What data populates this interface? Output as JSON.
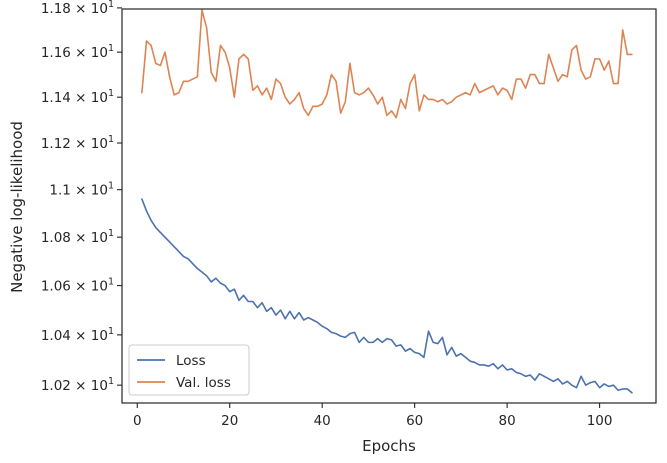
{
  "chart_data": {
    "type": "line",
    "title": "",
    "xlabel": "Epochs",
    "ylabel": "Negative log-likelihood",
    "xlim": [
      -3.3,
      112.2
    ],
    "ylim": [
      10.13,
      11.795
    ],
    "y_scale": "log",
    "grid": false,
    "legend_position": "lower-left",
    "x_ticks": [
      0,
      20,
      40,
      60,
      80,
      100
    ],
    "x_tick_labels": [
      "0",
      "20",
      "40",
      "60",
      "80",
      "100"
    ],
    "y_ticks": [
      10.2,
      10.4,
      10.6,
      10.8,
      11.0,
      11.2,
      11.4,
      11.6,
      11.8
    ],
    "y_tick_labels": [
      {
        "base": "1.02",
        "mult": "×",
        "pow": "10",
        "exp": "1"
      },
      {
        "base": "1.04",
        "mult": "×",
        "pow": "10",
        "exp": "1"
      },
      {
        "base": "1.06",
        "mult": "×",
        "pow": "10",
        "exp": "1"
      },
      {
        "base": "1.08",
        "mult": "×",
        "pow": "10",
        "exp": "1"
      },
      {
        "base": "1.1",
        "mult": "×",
        "pow": "10",
        "exp": "1"
      },
      {
        "base": "1.12",
        "mult": "×",
        "pow": "10",
        "exp": "1"
      },
      {
        "base": "1.14",
        "mult": "×",
        "pow": "10",
        "exp": "1"
      },
      {
        "base": "1.16",
        "mult": "×",
        "pow": "10",
        "exp": "1"
      },
      {
        "base": "1.18",
        "mult": "×",
        "pow": "10",
        "exp": "1"
      }
    ],
    "series": [
      {
        "name": "Loss",
        "color": "#4c72b0",
        "x": [
          1,
          2,
          3,
          4,
          5,
          6,
          7,
          8,
          9,
          10,
          11,
          12,
          13,
          14,
          15,
          16,
          17,
          18,
          19,
          20,
          21,
          22,
          23,
          24,
          25,
          26,
          27,
          28,
          29,
          30,
          31,
          32,
          33,
          34,
          35,
          36,
          37,
          38,
          39,
          40,
          41,
          42,
          43,
          44,
          45,
          46,
          47,
          48,
          49,
          50,
          51,
          52,
          53,
          54,
          55,
          56,
          57,
          58,
          59,
          60,
          61,
          62,
          63,
          64,
          65,
          66,
          67,
          68,
          69,
          70,
          71,
          72,
          73,
          74,
          75,
          76,
          77,
          78,
          79,
          80,
          81,
          82,
          83,
          84,
          85,
          86,
          87,
          88,
          89,
          90,
          91,
          92,
          93,
          94,
          95,
          96,
          97,
          98,
          99,
          100,
          101,
          102,
          103,
          104,
          105,
          106,
          107
        ],
        "values": [
          10.96,
          10.91,
          10.87,
          10.84,
          10.82,
          10.8,
          10.78,
          10.76,
          10.74,
          10.72,
          10.71,
          10.69,
          10.67,
          10.655,
          10.64,
          10.615,
          10.63,
          10.61,
          10.6,
          10.575,
          10.585,
          10.54,
          10.56,
          10.535,
          10.535,
          10.51,
          10.53,
          10.495,
          10.51,
          10.48,
          10.5,
          10.465,
          10.495,
          10.465,
          10.49,
          10.46,
          10.47,
          10.46,
          10.45,
          10.435,
          10.425,
          10.41,
          10.405,
          10.395,
          10.39,
          10.405,
          10.41,
          10.37,
          10.39,
          10.37,
          10.37,
          10.385,
          10.37,
          10.385,
          10.38,
          10.355,
          10.36,
          10.335,
          10.345,
          10.33,
          10.325,
          10.31,
          10.415,
          10.37,
          10.365,
          10.39,
          10.32,
          10.35,
          10.315,
          10.325,
          10.31,
          10.295,
          10.29,
          10.28,
          10.28,
          10.275,
          10.285,
          10.265,
          10.28,
          10.26,
          10.265,
          10.25,
          10.245,
          10.235,
          10.24,
          10.22,
          10.245,
          10.235,
          10.225,
          10.215,
          10.225,
          10.205,
          10.215,
          10.2,
          10.19,
          10.235,
          10.2,
          10.21,
          10.215,
          10.19,
          10.205,
          10.195,
          10.2,
          10.18,
          10.185,
          10.185,
          10.17
        ]
      },
      {
        "name": "Val. loss",
        "color": "#dd8452",
        "x": [
          1,
          2,
          3,
          4,
          5,
          6,
          7,
          8,
          9,
          10,
          11,
          12,
          13,
          14,
          15,
          16,
          17,
          18,
          19,
          20,
          21,
          22,
          23,
          24,
          25,
          26,
          27,
          28,
          29,
          30,
          31,
          32,
          33,
          34,
          35,
          36,
          37,
          38,
          39,
          40,
          41,
          42,
          43,
          44,
          45,
          46,
          47,
          48,
          49,
          50,
          51,
          52,
          53,
          54,
          55,
          56,
          57,
          58,
          59,
          60,
          61,
          62,
          63,
          64,
          65,
          66,
          67,
          68,
          69,
          70,
          71,
          72,
          73,
          74,
          75,
          76,
          77,
          78,
          79,
          80,
          81,
          82,
          83,
          84,
          85,
          86,
          87,
          88,
          89,
          90,
          91,
          92,
          93,
          94,
          95,
          96,
          97,
          98,
          99,
          100,
          101,
          102,
          103,
          104,
          105,
          106,
          107
        ],
        "values": [
          11.42,
          11.65,
          11.63,
          11.55,
          11.54,
          11.6,
          11.49,
          11.41,
          11.42,
          11.47,
          11.47,
          11.48,
          11.49,
          11.79,
          11.71,
          11.51,
          11.47,
          11.63,
          11.6,
          11.53,
          11.4,
          11.57,
          11.59,
          11.57,
          11.43,
          11.45,
          11.41,
          11.44,
          11.39,
          11.48,
          11.46,
          11.4,
          11.37,
          11.39,
          11.42,
          11.35,
          11.32,
          11.36,
          11.36,
          11.37,
          11.41,
          11.5,
          11.47,
          11.33,
          11.38,
          11.55,
          11.42,
          11.41,
          11.42,
          11.44,
          11.41,
          11.37,
          11.4,
          11.32,
          11.34,
          11.31,
          11.39,
          11.35,
          11.46,
          11.5,
          11.34,
          11.41,
          11.39,
          11.39,
          11.38,
          11.39,
          11.37,
          11.38,
          11.4,
          11.41,
          11.42,
          11.41,
          11.46,
          11.42,
          11.43,
          11.44,
          11.45,
          11.41,
          11.44,
          11.43,
          11.39,
          11.48,
          11.48,
          11.44,
          11.5,
          11.5,
          11.46,
          11.46,
          11.59,
          11.53,
          11.47,
          11.5,
          11.49,
          11.61,
          11.63,
          11.52,
          11.48,
          11.49,
          11.57,
          11.57,
          11.52,
          11.56,
          11.46,
          11.46,
          11.7,
          11.59,
          11.59
        ]
      }
    ]
  }
}
